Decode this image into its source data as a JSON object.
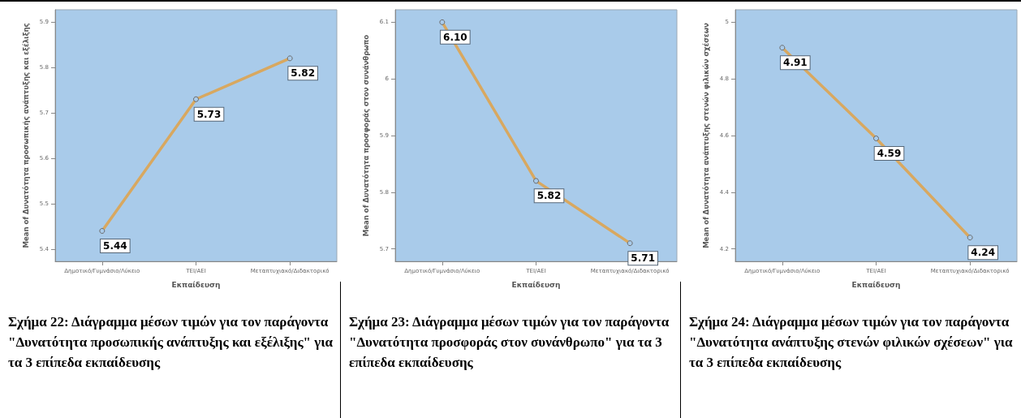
{
  "chart_data": [
    {
      "type": "line",
      "xlabel": "Εκπαίδευση",
      "ylabel": "Mean of Δυνατότητα προσωπικής ανάπτυξης και εξέλιξης",
      "categories": [
        "Δημοτικό/Γυμνάσιο/Λύκειο",
        "ΤΕΙ/ΑΕΙ",
        "Μεταπτυχιακό/Διδακτορικό"
      ],
      "series": [
        {
          "color": "#d8a860",
          "values": [
            5.44,
            5.73,
            5.82
          ],
          "value_labels": [
            "5.44",
            "5.73",
            "5.82"
          ]
        }
      ],
      "ylim": [
        5.373,
        5.927
      ],
      "yticks": [
        5.4,
        5.5,
        5.6,
        5.7,
        5.8,
        5.9
      ],
      "marker": "circle",
      "grid": false,
      "annotations": [
        "Σχήμα 22: Διάγραμμα μέσων τιμών για τον παράγοντα \"Δυνατότητα προσωπικής ανάπτυξης και εξέλιξης\" για τα 3 επίπεδα εκπαίδευσης"
      ]
    },
    {
      "type": "line",
      "xlabel": "Εκπαίδευση",
      "ylabel": "Mean of Δυνατότητα προσφοράς στον συνάνθρωπο",
      "categories": [
        "Δημοτικό/Γυμνάσιο/Λύκειο",
        "ΤΕΙ/ΑΕΙ",
        "Μεταπτυχιακό/Διδακτορικό"
      ],
      "series": [
        {
          "color": "#d8a860",
          "values": [
            6.1,
            5.82,
            5.71
          ],
          "value_labels": [
            "6.10",
            "5.82",
            "5.71"
          ]
        }
      ],
      "ylim": [
        5.678,
        6.122
      ],
      "yticks": [
        5.7,
        5.8,
        5.9,
        6.0,
        6.1
      ],
      "marker": "circle",
      "grid": false,
      "annotations": [
        "Σχήμα 23: Διάγραμμα μέσων τιμών για τον παράγοντα \"Δυνατότητα προσφοράς στον συνάνθρωπο\" για τα 3 επίπεδα εκπαίδευσης"
      ]
    },
    {
      "type": "line",
      "xlabel": "Εκπαίδευση",
      "ylabel": "Mean of Δυνατότητα ανάπτυξης στενών φιλικών σχέσεων",
      "categories": [
        "Δημοτικό/Γυμνάσιο/Λύκειο",
        "ΤΕΙ/ΑΕΙ",
        "Μεταπτυχιακό/Διδακτορικό"
      ],
      "series": [
        {
          "color": "#d8a860",
          "values": [
            4.91,
            4.59,
            4.24
          ],
          "value_labels": [
            "4.91",
            "4.59",
            "4.24"
          ]
        }
      ],
      "ylim": [
        4.156,
        5.044
      ],
      "yticks": [
        4.2,
        4.4,
        4.6,
        4.8,
        5.0
      ],
      "marker": "circle",
      "grid": false,
      "annotations": [
        "Σχήμα 24: Διάγραμμα μέσων τιμών για τον παράγοντα \"Δυνατότητα ανάπτυξης στενών φιλικών σχέσεων\" για τα 3 επίπεδα εκπαίδευσης"
      ]
    }
  ]
}
